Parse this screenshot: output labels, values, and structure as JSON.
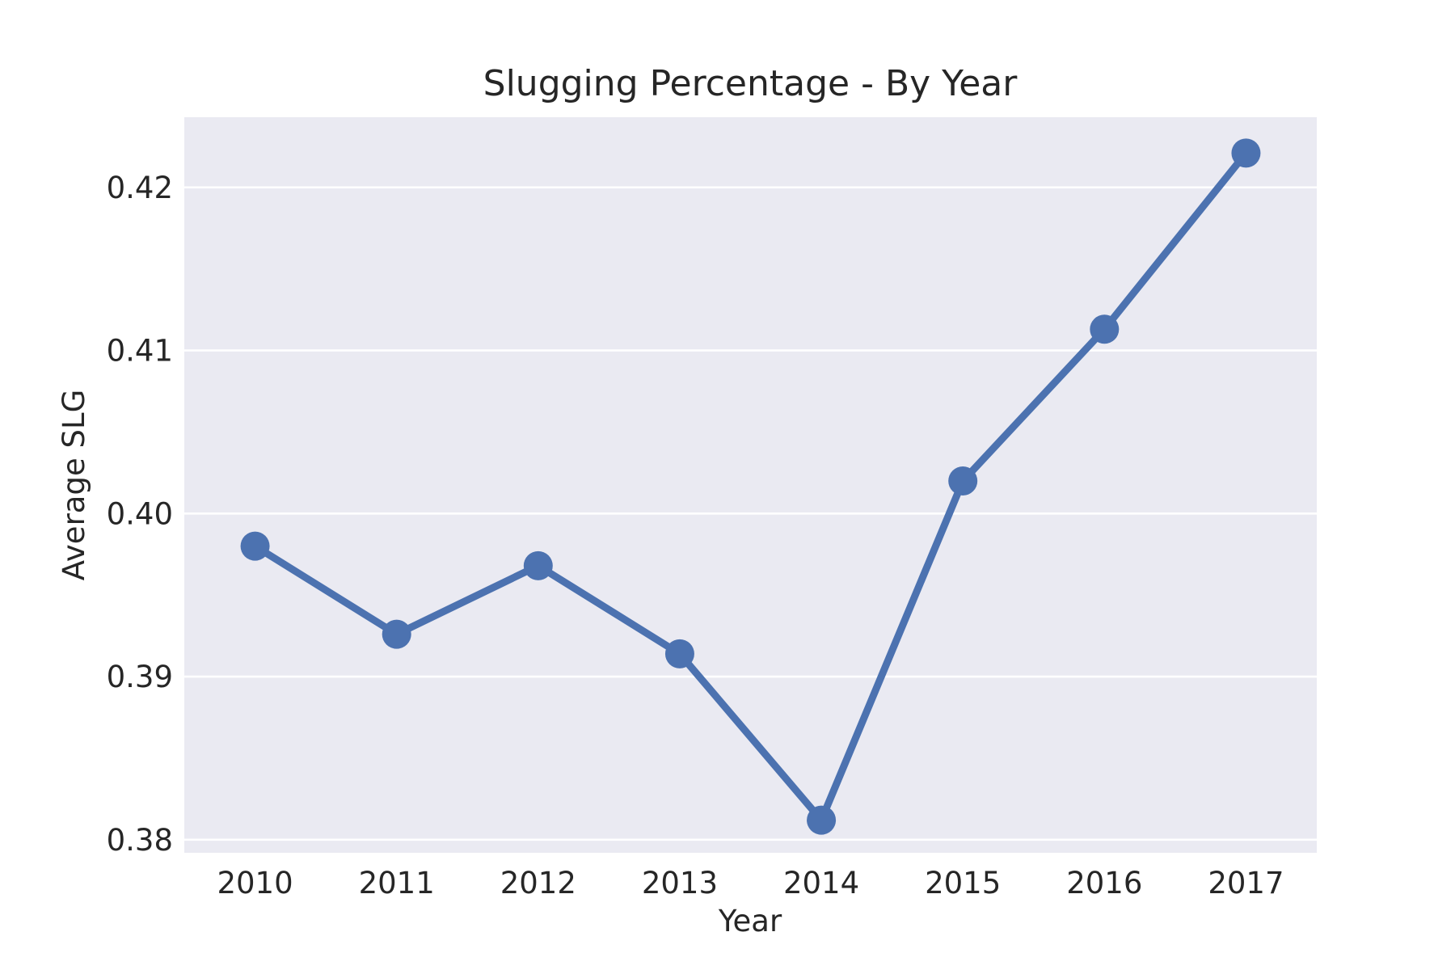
{
  "chart_data": {
    "type": "line",
    "title": "Slugging Percentage - By Year",
    "xlabel": "Year",
    "ylabel": "Average SLG",
    "categories": [
      "2010",
      "2011",
      "2012",
      "2013",
      "2014",
      "2015",
      "2016",
      "2017"
    ],
    "series": [
      {
        "values": [
          0.398,
          0.3926,
          0.3968,
          0.3914,
          0.3812,
          0.402,
          0.4113,
          0.4221
        ]
      }
    ],
    "yticks": [
      0.38,
      0.39,
      0.4,
      0.41,
      0.42
    ],
    "ytick_labels": [
      "0.38",
      "0.39",
      "0.40",
      "0.41",
      "0.42"
    ],
    "ylim": [
      0.3792,
      0.4243
    ],
    "grid": true,
    "legend": "none",
    "colors": {
      "plot_background": "#eaeaf2",
      "grid": "#ffffff",
      "series": "#4c72b0",
      "text": "#262626"
    }
  }
}
